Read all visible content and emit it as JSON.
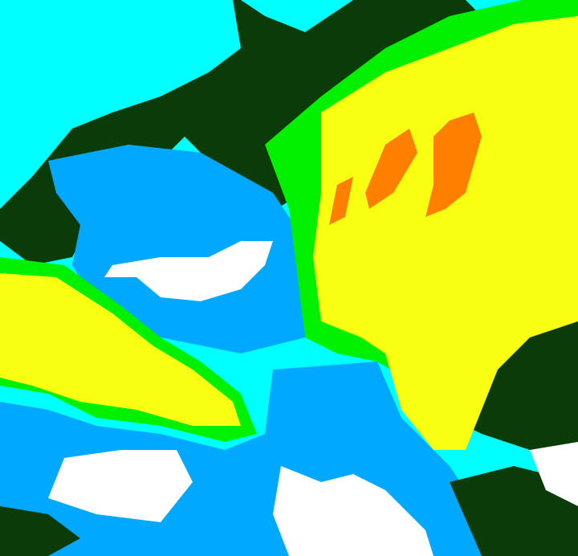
{
  "image": {
    "kind": "false-color satellite cloud imagery",
    "palette": {
      "clear": "#00ffff",
      "dark_green": "#0b3c08",
      "light_blue": "#00a8ff",
      "white": "#ffffff",
      "green": "#00f000",
      "yellow": "#f8ff10",
      "orange": "#ff8000"
    }
  }
}
